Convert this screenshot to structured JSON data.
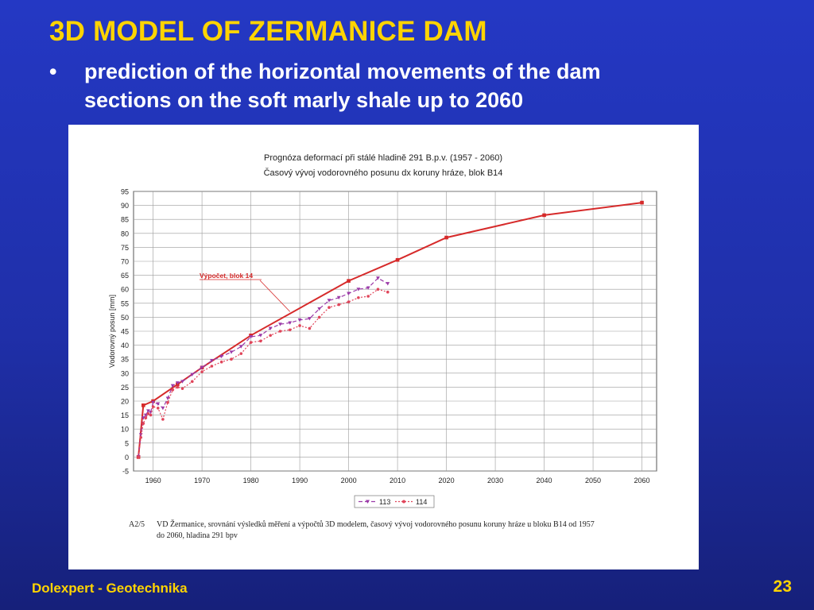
{
  "slide": {
    "title": "3D MODEL OF ZERMANICE DAM",
    "bullet_symbol": "•",
    "bullet_lines": [
      "prediction of the horizontal movements of the dam",
      "sections on the soft marly shale up to 2060"
    ],
    "footer_left": "Dolexpert - Geotechnika",
    "page_number": "23",
    "title_color": "#ffd400",
    "background_color": "#1f2fa8"
  },
  "chart_data": {
    "type": "line",
    "title": "Prognóza deformací při stálé hladině 291 B.p.v. (1957 - 2060)",
    "subtitle": "Časový vývoj vodorovného posunu dx koruny hráze, blok B14",
    "xlabel": "",
    "ylabel": "Vodorovný posun [mm]",
    "xlim": [
      1956,
      2063
    ],
    "ylim": [
      -5,
      95
    ],
    "x_ticks": [
      1960,
      1970,
      1980,
      1990,
      2000,
      2010,
      2020,
      2030,
      2040,
      2050,
      2060
    ],
    "y_ticks": [
      -5,
      0,
      5,
      10,
      15,
      20,
      25,
      30,
      35,
      40,
      45,
      50,
      55,
      60,
      65,
      70,
      75,
      80,
      85,
      90,
      95
    ],
    "grid": true,
    "legend_position": "bottom-right",
    "annotation": {
      "text": "Výpočet, blok 14",
      "points_to": [
        1988,
        52
      ]
    },
    "caption_id": "A2/5",
    "caption": [
      "VD Žermanice, srovnání výsledků měření a výpočtů 3D modelem, časový vývoj vodorovného posunu  koruny hráze u bloku B14 od 1957",
      "do 2060, hladina 291 bpv"
    ],
    "series": [
      {
        "name": "Výpočet, blok 14",
        "color": "#d62a2a",
        "style": "solid",
        "x": [
          1957,
          1958,
          1960,
          1965,
          1970,
          1980,
          2000,
          2010,
          2020,
          2040,
          2060
        ],
        "y": [
          0,
          18.5,
          20,
          26,
          32,
          43.5,
          63,
          70.5,
          78.5,
          86.5,
          91
        ]
      },
      {
        "name": "113",
        "color": "#9b3aa8",
        "style": "dashed",
        "x": [
          1957,
          1957.5,
          1958,
          1958.5,
          1959,
          1959.5,
          1960,
          1961,
          1962,
          1963,
          1964,
          1965,
          1966,
          1968,
          1970,
          1972,
          1974,
          1976,
          1978,
          1980,
          1982,
          1984,
          1986,
          1988,
          1990,
          1992,
          1994,
          1996,
          1998,
          2000,
          2002,
          2004,
          2006,
          2008
        ],
        "y": [
          0,
          8,
          14,
          15,
          16.5,
          16,
          19.5,
          19,
          17.5,
          21,
          25.5,
          26.5,
          27,
          29.5,
          32,
          34.5,
          36,
          37.5,
          39.5,
          43,
          43.5,
          46,
          47.5,
          48,
          49,
          49.5,
          53,
          56,
          57,
          58.5,
          60,
          60.5,
          64,
          62
        ]
      },
      {
        "name": "114",
        "color": "#e0455a",
        "style": "dotted",
        "x": [
          1957,
          1957.5,
          1958,
          1958.5,
          1959,
          1959.5,
          1960,
          1961,
          1962,
          1963,
          1964,
          1965,
          1966,
          1968,
          1970,
          1972,
          1974,
          1976,
          1978,
          1980,
          1982,
          1984,
          1986,
          1988,
          1990,
          1992,
          1994,
          1996,
          1998,
          2000,
          2002,
          2004,
          2006,
          2008
        ],
        "y": [
          0,
          7,
          12,
          14,
          15.5,
          15,
          18,
          17.5,
          13.5,
          19.5,
          24,
          25,
          24.5,
          27,
          30.5,
          32.5,
          34,
          35,
          37,
          41,
          41.5,
          43.5,
          45,
          45.5,
          47,
          46,
          50,
          53.5,
          54.5,
          55.5,
          57,
          57.5,
          60,
          59
        ]
      }
    ]
  }
}
